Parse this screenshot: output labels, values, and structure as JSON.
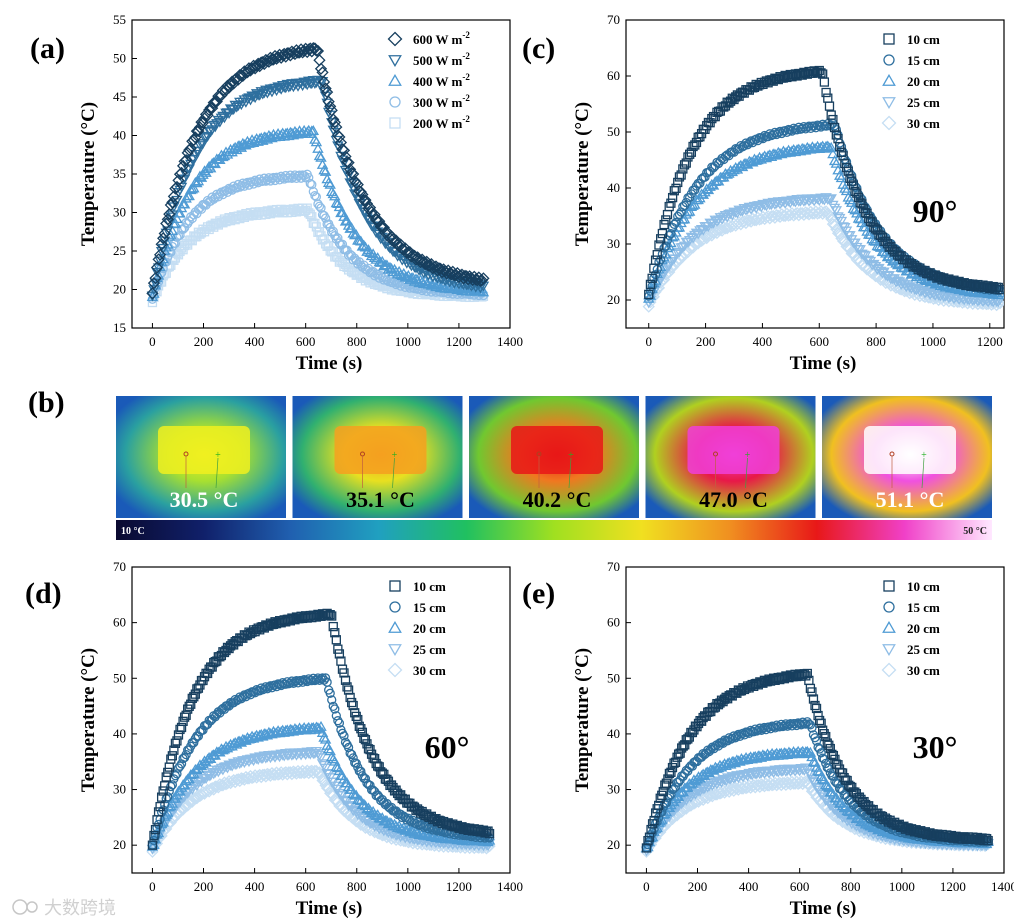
{
  "watermark": "大数跨境",
  "colors": [
    "#173f5f",
    "#2e6f9e",
    "#4f9bd4",
    "#8fbde6",
    "#c5def3"
  ],
  "chart_data": [
    {
      "id": "a",
      "panel_label": "(a)",
      "type": "scatter",
      "xlabel": "Time (s)",
      "ylabel": "Temperature (°C)",
      "xlim": [
        -80,
        1400
      ],
      "ylim": [
        15,
        55
      ],
      "xticks": [
        0,
        200,
        400,
        600,
        800,
        1000,
        1200,
        1400
      ],
      "yticks": [
        15,
        20,
        25,
        30,
        35,
        40,
        45,
        50,
        55
      ],
      "legend": {
        "position": "top-right",
        "items": [
          {
            "label": "600 W m",
            "sup": "-2",
            "marker": "diamond"
          },
          {
            "label": "500 W m",
            "sup": "-2",
            "marker": "triangle-down"
          },
          {
            "label": "400 W m",
            "sup": "-2",
            "marker": "triangle-up"
          },
          {
            "label": "300 W m",
            "sup": "-2",
            "marker": "circle"
          },
          {
            "label": "200 W m",
            "sup": "-2",
            "marker": "square"
          }
        ]
      },
      "series": [
        {
          "name": "600 W m-2",
          "start": 19.5,
          "plateau": 52,
          "tau_heat": 170,
          "t_off": 645,
          "end": 20.3,
          "tau_cool": 185,
          "t_end": 1300
        },
        {
          "name": "500 W m-2",
          "start": 19.0,
          "plateau": 47.5,
          "tau_heat": 160,
          "t_off": 665,
          "end": 19.8,
          "tau_cool": 170,
          "t_end": 1300
        },
        {
          "name": "400 W m-2",
          "start": 18.8,
          "plateau": 40.8,
          "tau_heat": 150,
          "t_off": 630,
          "end": 19.5,
          "tau_cool": 160,
          "t_end": 1300
        },
        {
          "name": "300 W m-2",
          "start": 18.7,
          "plateau": 35,
          "tau_heat": 145,
          "t_off": 610,
          "end": 19.3,
          "tau_cool": 150,
          "t_end": 1300
        },
        {
          "name": "200 W m-2",
          "start": 18.5,
          "plateau": 30.5,
          "tau_heat": 140,
          "t_off": 610,
          "end": 19.1,
          "tau_cool": 140,
          "t_end": 1300
        }
      ]
    },
    {
      "id": "c",
      "panel_label": "(c)",
      "type": "scatter",
      "annotation": "90°",
      "xlabel": "Time (s)",
      "ylabel": "Temperature (°C)",
      "xlim": [
        -80,
        1250
      ],
      "ylim": [
        15,
        70
      ],
      "xticks": [
        0,
        200,
        400,
        600,
        800,
        1000,
        1200
      ],
      "yticks": [
        20,
        30,
        40,
        50,
        60,
        70
      ],
      "legend": {
        "position": "top-right",
        "items": [
          {
            "label": "10 cm",
            "marker": "square"
          },
          {
            "label": "15 cm",
            "marker": "circle"
          },
          {
            "label": "20 cm",
            "marker": "triangle-up"
          },
          {
            "label": "25 cm",
            "marker": "triangle-down"
          },
          {
            "label": "30 cm",
            "marker": "diamond"
          }
        ]
      },
      "series": [
        {
          "name": "10 cm",
          "start": 21,
          "plateau": 61.5,
          "tau_heat": 150,
          "t_off": 610,
          "end": 21.5,
          "tau_cool": 150,
          "t_end": 1240
        },
        {
          "name": "15 cm",
          "start": 20.5,
          "plateau": 52,
          "tau_heat": 170,
          "t_off": 655,
          "end": 21,
          "tau_cool": 160,
          "t_end": 1240
        },
        {
          "name": "20 cm",
          "start": 20,
          "plateau": 48,
          "tau_heat": 170,
          "t_off": 640,
          "end": 20.5,
          "tau_cool": 155,
          "t_end": 1240
        },
        {
          "name": "25 cm",
          "start": 19.5,
          "plateau": 38.5,
          "tau_heat": 160,
          "t_off": 640,
          "end": 19.5,
          "tau_cool": 150,
          "t_end": 1240
        },
        {
          "name": "30 cm",
          "start": 19,
          "plateau": 36,
          "tau_heat": 160,
          "t_off": 630,
          "end": 19,
          "tau_cool": 150,
          "t_end": 1240
        }
      ]
    },
    {
      "id": "d",
      "panel_label": "(d)",
      "type": "scatter",
      "annotation": "60°",
      "xlabel": "Time (s)",
      "ylabel": "Temperature (°C)",
      "xlim": [
        -80,
        1400
      ],
      "ylim": [
        15,
        70
      ],
      "xticks": [
        0,
        200,
        400,
        600,
        800,
        1000,
        1200,
        1400
      ],
      "yticks": [
        20,
        30,
        40,
        50,
        60,
        70
      ],
      "legend": {
        "position": "top-right",
        "items": [
          {
            "label": "10 cm",
            "marker": "square"
          },
          {
            "label": "15 cm",
            "marker": "circle"
          },
          {
            "label": "20 cm",
            "marker": "triangle-up"
          },
          {
            "label": "25 cm",
            "marker": "triangle-down"
          },
          {
            "label": "30 cm",
            "marker": "diamond"
          }
        ]
      },
      "series": [
        {
          "name": "10 cm",
          "start": 20,
          "plateau": 62,
          "tau_heat": 160,
          "t_off": 700,
          "end": 21.5,
          "tau_cool": 160,
          "t_end": 1320
        },
        {
          "name": "15 cm",
          "start": 19.8,
          "plateau": 50.5,
          "tau_heat": 170,
          "t_off": 680,
          "end": 21,
          "tau_cool": 155,
          "t_end": 1320
        },
        {
          "name": "20 cm",
          "start": 19.5,
          "plateau": 41.5,
          "tau_heat": 170,
          "t_off": 660,
          "end": 20.5,
          "tau_cool": 150,
          "t_end": 1320
        },
        {
          "name": "25 cm",
          "start": 19.3,
          "plateau": 37,
          "tau_heat": 160,
          "t_off": 650,
          "end": 20,
          "tau_cool": 145,
          "t_end": 1320
        },
        {
          "name": "30 cm",
          "start": 19,
          "plateau": 33.5,
          "tau_heat": 160,
          "t_off": 650,
          "end": 19.5,
          "tau_cool": 145,
          "t_end": 1320
        }
      ]
    },
    {
      "id": "e",
      "panel_label": "(e)",
      "type": "scatter",
      "annotation": "30°",
      "xlabel": "Time (s)",
      "ylabel": "Temperature (°C)",
      "xlim": [
        -80,
        1400
      ],
      "ylim": [
        15,
        70
      ],
      "xticks": [
        0,
        200,
        400,
        600,
        800,
        1000,
        1200,
        1400
      ],
      "yticks": [
        20,
        30,
        40,
        50,
        60,
        70
      ],
      "legend": {
        "position": "top-right",
        "items": [
          {
            "label": "10 cm",
            "marker": "square"
          },
          {
            "label": "15 cm",
            "marker": "circle"
          },
          {
            "label": "20 cm",
            "marker": "triangle-up"
          },
          {
            "label": "25 cm",
            "marker": "triangle-down"
          },
          {
            "label": "30 cm",
            "marker": "diamond"
          }
        ]
      },
      "series": [
        {
          "name": "10 cm",
          "start": 19.5,
          "plateau": 51.5,
          "tau_heat": 170,
          "t_off": 630,
          "end": 20.8,
          "tau_cool": 150,
          "t_end": 1340
        },
        {
          "name": "15 cm",
          "start": 19.3,
          "plateau": 42.5,
          "tau_heat": 170,
          "t_off": 640,
          "end": 20.5,
          "tau_cool": 150,
          "t_end": 1340
        },
        {
          "name": "20 cm",
          "start": 19.2,
          "plateau": 37,
          "tau_heat": 160,
          "t_off": 640,
          "end": 20.3,
          "tau_cool": 145,
          "t_end": 1340
        },
        {
          "name": "25 cm",
          "start": 19,
          "plateau": 34,
          "tau_heat": 160,
          "t_off": 630,
          "end": 20,
          "tau_cool": 145,
          "t_end": 1340
        },
        {
          "name": "30 cm",
          "start": 19,
          "plateau": 31.5,
          "tau_heat": 160,
          "t_off": 630,
          "end": 20,
          "tau_cool": 145,
          "t_end": 1340
        }
      ]
    }
  ],
  "thermal": {
    "panel_label": "(b)",
    "images": [
      {
        "temp_label": "30.5 °C",
        "core_color": "#f0f020",
        "mid_color": "#a8e030",
        "bg_color": "#2aa0a0"
      },
      {
        "temp_label": "35.1 °C",
        "core_color": "#f4a020",
        "mid_color": "#e8e020",
        "bg_color": "#30b070"
      },
      {
        "temp_label": "40.2 °C",
        "core_color": "#e81818",
        "mid_color": "#f07820",
        "bg_color": "#70c830"
      },
      {
        "temp_label": "47.0 °C",
        "core_color": "#f040d8",
        "mid_color": "#e81848",
        "bg_color": "#b0d020"
      },
      {
        "temp_label": "51.1 °C",
        "core_color": "#ffffff",
        "mid_color": "#f050e0",
        "bg_color": "#f0c020"
      }
    ],
    "colorbar": {
      "min_label": "10 °C",
      "max_label": "50 °C",
      "stops": [
        "#0a0a30",
        "#10206a",
        "#2060b0",
        "#20a0c0",
        "#20c060",
        "#a0e020",
        "#f0e020",
        "#f09020",
        "#e81818",
        "#f040c8",
        "#ffe8ff"
      ]
    }
  }
}
